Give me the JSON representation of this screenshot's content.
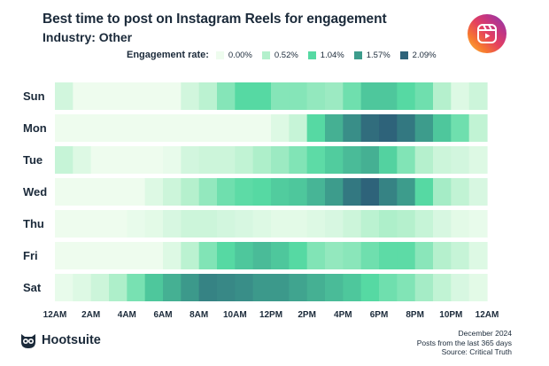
{
  "header": {
    "title": "Best time to post on Instagram Reels for engagement",
    "subtitle": "Industry: Other"
  },
  "legend": {
    "title": "Engagement rate:",
    "items": [
      {
        "label": "0.00%",
        "color": "#eefcee"
      },
      {
        "label": "0.52%",
        "color": "#b3f0cc"
      },
      {
        "label": "1.04%",
        "color": "#56d9a3"
      },
      {
        "label": "1.57%",
        "color": "#3d9c8c"
      },
      {
        "label": "2.09%",
        "color": "#2e637a"
      }
    ]
  },
  "chart_data": {
    "type": "heatmap",
    "title": "Best time to post on Instagram Reels for engagement",
    "subtitle": "Industry: Other",
    "scale": {
      "min": 0.0,
      "max": 2.09,
      "unit": "%",
      "ticks": [
        0.0,
        0.52,
        1.04,
        1.57,
        2.09
      ]
    },
    "days": [
      "Sun",
      "Mon",
      "Tue",
      "Wed",
      "Thu",
      "Fri",
      "Sat"
    ],
    "x_tick_labels": [
      "12AM",
      "2AM",
      "4AM",
      "6AM",
      "8AM",
      "10AM",
      "12PM",
      "2PM",
      "4PM",
      "6PM",
      "8PM",
      "10PM",
      "12AM"
    ],
    "hours": [
      0,
      1,
      2,
      3,
      4,
      5,
      6,
      7,
      8,
      9,
      10,
      11,
      12,
      13,
      14,
      15,
      16,
      17,
      18,
      19,
      20,
      21,
      22,
      23
    ],
    "values": [
      [
        0.26,
        0.0,
        0.0,
        0.0,
        0.0,
        0.0,
        0.0,
        0.26,
        0.45,
        0.78,
        1.04,
        1.04,
        0.78,
        0.78,
        0.7,
        0.65,
        0.9,
        1.2,
        1.2,
        1.04,
        0.9,
        0.5,
        0.15,
        0.3
      ],
      [
        0.0,
        0.0,
        0.0,
        0.0,
        0.0,
        0.0,
        0.0,
        0.0,
        0.0,
        0.0,
        0.0,
        0.0,
        0.15,
        0.35,
        1.04,
        1.4,
        1.7,
        2.0,
        2.09,
        1.9,
        1.57,
        1.2,
        0.9,
        0.4
      ],
      [
        0.35,
        0.15,
        0.0,
        0.0,
        0.0,
        0.0,
        0.05,
        0.25,
        0.3,
        0.3,
        0.4,
        0.55,
        0.65,
        0.8,
        1.0,
        1.15,
        1.3,
        1.4,
        1.1,
        0.8,
        0.5,
        0.3,
        0.25,
        0.15
      ],
      [
        0.0,
        0.0,
        0.0,
        0.0,
        0.0,
        0.15,
        0.3,
        0.5,
        0.7,
        0.9,
        1.0,
        1.04,
        1.15,
        1.2,
        1.35,
        1.57,
        1.9,
        2.09,
        1.8,
        1.57,
        1.04,
        0.6,
        0.4,
        0.2
      ],
      [
        0.0,
        0.0,
        0.0,
        0.0,
        0.05,
        0.1,
        0.2,
        0.3,
        0.3,
        0.25,
        0.2,
        0.15,
        0.1,
        0.1,
        0.15,
        0.2,
        0.3,
        0.45,
        0.55,
        0.5,
        0.35,
        0.2,
        0.1,
        0.05
      ],
      [
        0.0,
        0.0,
        0.0,
        0.0,
        0.0,
        0.0,
        0.15,
        0.45,
        0.8,
        1.04,
        1.2,
        1.3,
        1.2,
        1.04,
        0.8,
        0.7,
        0.75,
        0.9,
        1.0,
        1.0,
        0.75,
        0.5,
        0.35,
        0.15
      ],
      [
        0.05,
        0.15,
        0.3,
        0.55,
        0.85,
        1.2,
        1.4,
        1.6,
        1.8,
        1.75,
        1.7,
        1.6,
        1.6,
        1.5,
        1.4,
        1.3,
        1.2,
        1.04,
        0.9,
        0.8,
        0.6,
        0.4,
        0.2,
        0.1
      ]
    ]
  },
  "footer": {
    "brand": "Hootsuite",
    "date": "December 2024",
    "period": "Posts from the last 365 days",
    "source": "Source: Critical Truth"
  }
}
